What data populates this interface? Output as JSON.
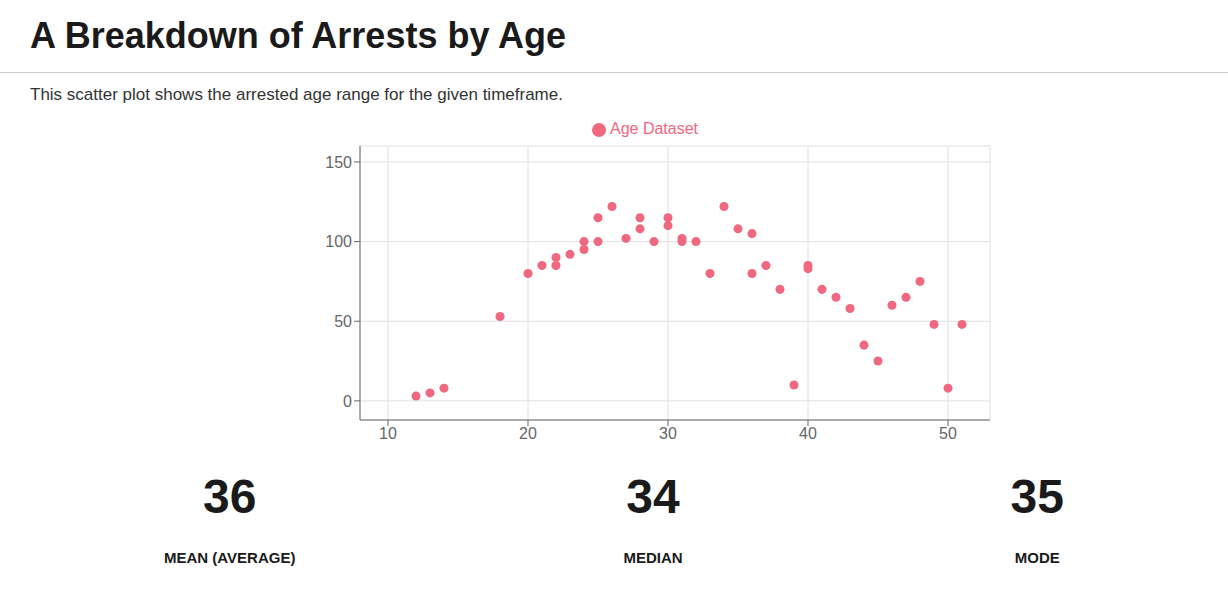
{
  "chart_data": {
    "type": "scatter",
    "title": "A Breakdown of Arrests by Age",
    "subtitle": "This scatter plot shows the arrested age range for the given timeframe.",
    "x": [
      12,
      13,
      14,
      18,
      20,
      21,
      22,
      22,
      23,
      24,
      24,
      25,
      25,
      26,
      27,
      28,
      28,
      29,
      30,
      30,
      31,
      31,
      32,
      33,
      34,
      35,
      36,
      36,
      37,
      38,
      39,
      40,
      40,
      41,
      42,
      43,
      44,
      45,
      46,
      47,
      48,
      49,
      50,
      51
    ],
    "series": [
      {
        "name": "Age Dataset",
        "color": "#F06880",
        "values": [
          3,
          5,
          8,
          53,
          80,
          85,
          85,
          90,
          92,
          95,
          100,
          115,
          100,
          122,
          102,
          115,
          108,
          100,
          115,
          110,
          102,
          100,
          100,
          80,
          122,
          108,
          105,
          80,
          85,
          70,
          10,
          85,
          83,
          70,
          65,
          58,
          35,
          25,
          60,
          65,
          75,
          48,
          8,
          48
        ]
      }
    ],
    "xlim": [
      8,
      53
    ],
    "ylim": [
      -12,
      160
    ],
    "xticks": [
      10,
      20,
      30,
      40,
      50
    ],
    "yticks": [
      0,
      50,
      100,
      150
    ],
    "grid": true,
    "legend": "top",
    "annotations": [
      {
        "text": "36",
        "label": "MEAN (AVERAGE)"
      },
      {
        "text": "34",
        "label": "MEDIAN"
      },
      {
        "text": "35",
        "label": "MODE"
      }
    ]
  }
}
